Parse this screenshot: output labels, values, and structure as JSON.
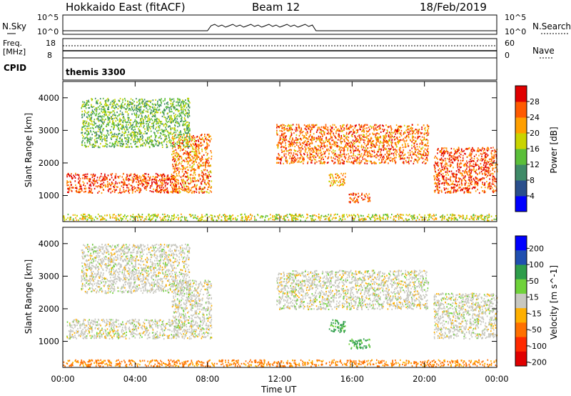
{
  "header": {
    "title": "Hokkaido East (fitACF)",
    "beam": "Beam 12",
    "date": "18/Feb/2019"
  },
  "top_panels": {
    "nsky_label": "N.Sky",
    "nsky_ticks": [
      "10^5",
      "10^0"
    ],
    "nsky_right_ticks": [
      "10^5",
      "10^0"
    ],
    "nsearch_label": "N.Search",
    "freq_label_line1": "Freq.",
    "freq_label_line2": "[MHz]",
    "freq_ticks": [
      "18",
      "8"
    ],
    "nave_label": "Nave",
    "nave_ticks": [
      "60",
      "0"
    ],
    "cpid_label": "CPID",
    "cpid_value": "themis 3300"
  },
  "colors": {
    "power_scale": [
      "#0000ff",
      "#2a4f8c",
      "#3f8a68",
      "#5bbf3a",
      "#c9d400",
      "#ff9f00",
      "#ff5a00",
      "#e00000"
    ],
    "velocity_scale": [
      "#0000ff",
      "#1f4fb0",
      "#2e9d4a",
      "#6fd23a",
      "#c8c8c0",
      "#ffb000",
      "#ff7000",
      "#ff2a00",
      "#e00000"
    ],
    "axis": "#000000"
  },
  "chart_data": [
    {
      "type": "heatmap",
      "title": "",
      "xlabel": "Time UT",
      "ylabel": "Slant Range [km]",
      "x_tick_labels": [
        "00:00",
        "04:00",
        "08:00",
        "12:00",
        "16:00",
        "20:00",
        "00:00"
      ],
      "xlim": [
        0,
        24
      ],
      "ylim": [
        200,
        4500
      ],
      "y_ticks": [
        1000,
        2000,
        3000,
        4000
      ],
      "colorbar": {
        "label": "Power [dB]",
        "ticks": [
          4,
          8,
          12,
          16,
          20,
          24,
          28
        ],
        "range": [
          0,
          32
        ]
      },
      "features": [
        {
          "name": "band-morning",
          "x": [
            0.2,
            6.3
          ],
          "y": [
            1100,
            1700
          ],
          "value": 27
        },
        {
          "name": "arc-0730",
          "x": [
            6.0,
            8.2
          ],
          "y": [
            1100,
            2900
          ],
          "value": 24
        },
        {
          "name": "upper-band-midday",
          "x": [
            11.8,
            20.2
          ],
          "y": [
            2000,
            3200
          ],
          "value": 25
        },
        {
          "name": "band-evening",
          "x": [
            20.5,
            24.0
          ],
          "y": [
            1100,
            2500
          ],
          "value": 27
        },
        {
          "name": "near-range-ground",
          "x": [
            0.0,
            24.0
          ],
          "y": [
            250,
            450
          ],
          "value": 18
        },
        {
          "name": "patch-1630",
          "x": [
            15.8,
            17.0
          ],
          "y": [
            800,
            1100
          ],
          "value": 26
        },
        {
          "name": "patch-1510",
          "x": [
            14.7,
            15.6
          ],
          "y": [
            1300,
            1700
          ],
          "value": 22
        },
        {
          "name": "sparse-upper",
          "x": [
            1.0,
            7.0
          ],
          "y": [
            2500,
            4000
          ],
          "value": 14
        }
      ]
    },
    {
      "type": "heatmap",
      "title": "",
      "xlabel": "Time UT",
      "ylabel": "Slant Range [km]",
      "x_tick_labels": [
        "00:00",
        "04:00",
        "08:00",
        "12:00",
        "16:00",
        "20:00",
        "00:00"
      ],
      "xlim": [
        0,
        24
      ],
      "ylim": [
        200,
        4500
      ],
      "y_ticks": [
        1000,
        2000,
        3000,
        4000
      ],
      "colorbar": {
        "label": "Velocity [m s^-1]",
        "ticks": [
          200,
          100,
          50,
          15,
          -15,
          -50,
          -100,
          -200
        ],
        "range": [
          -250,
          250
        ]
      },
      "features": [
        {
          "name": "band-morning",
          "x": [
            0.2,
            6.3
          ],
          "y": [
            1100,
            1700
          ],
          "value": 0
        },
        {
          "name": "arc-0730",
          "x": [
            6.0,
            8.2
          ],
          "y": [
            1100,
            2900
          ],
          "value": 0
        },
        {
          "name": "upper-band-midday",
          "x": [
            11.8,
            20.2
          ],
          "y": [
            2000,
            3200
          ],
          "value": 0
        },
        {
          "name": "band-evening",
          "x": [
            20.5,
            24.0
          ],
          "y": [
            1100,
            2500
          ],
          "value": 0
        },
        {
          "name": "near-range-ground",
          "x": [
            0.0,
            24.0
          ],
          "y": [
            250,
            450
          ],
          "value": -40
        },
        {
          "name": "patch-1630",
          "x": [
            15.8,
            17.0
          ],
          "y": [
            800,
            1100
          ],
          "value": 40
        },
        {
          "name": "patch-1510",
          "x": [
            14.7,
            15.6
          ],
          "y": [
            1300,
            1700
          ],
          "value": 40
        },
        {
          "name": "sparse-upper",
          "x": [
            1.0,
            7.0
          ],
          "y": [
            2500,
            4000
          ],
          "value": 0
        }
      ]
    }
  ]
}
